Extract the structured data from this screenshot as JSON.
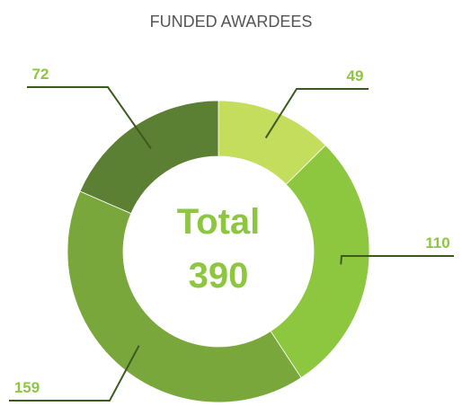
{
  "chart_data": {
    "type": "pie",
    "title": "FUNDED AWARDEES",
    "center_label": "Total",
    "total": 390,
    "categories": [
      null,
      null,
      null,
      null
    ],
    "values": [
      49,
      110,
      159,
      72
    ],
    "colors": [
      "#c5dd5c",
      "#8dc63f",
      "#7aa73c",
      "#5b7f33"
    ],
    "donut": true
  }
}
